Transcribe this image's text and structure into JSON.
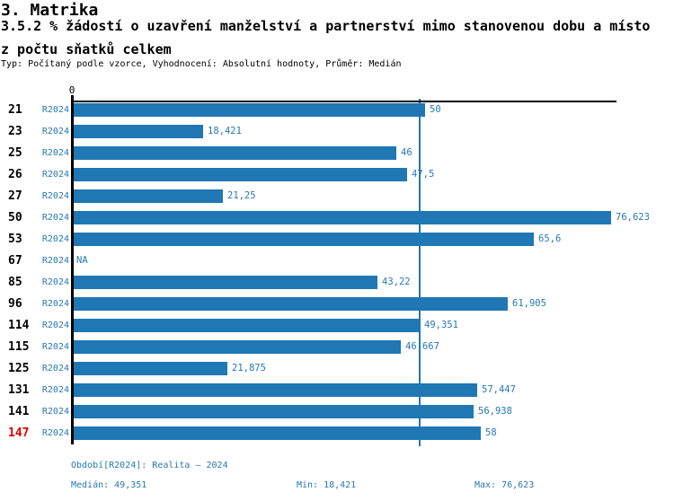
{
  "header": {
    "title": "3. Matrika",
    "subtitle_line1": "3.5.2 % žádostí o uzavření manželství a partnerství mimo stanovenou dobu a místo",
    "subtitle_line2": "z počtu sňatků celkem",
    "meta": "Typ: Počítaný podle vzorce, Vyhodnocení: Absolutní hodnoty, Průměr: Medián"
  },
  "chart_data": {
    "type": "bar",
    "orientation": "horizontal",
    "title": "3. Matrika",
    "subtitle": "3.5.2 % žádostí o uzavření manželství a partnerství mimo stanovenou dobu a místo z počtu sňatků celkem",
    "x_axis_zero_label": "0",
    "xlim": [
      0,
      77.3
    ],
    "grid": false,
    "series_label": "R2024",
    "median_value": 49.351,
    "categories": [
      "21",
      "23",
      "25",
      "26",
      "27",
      "50",
      "53",
      "67",
      "85",
      "96",
      "114",
      "115",
      "125",
      "131",
      "141",
      "147"
    ],
    "rows": [
      {
        "id": "21",
        "series": "R2024",
        "value": 50,
        "label": "50",
        "highlight": false
      },
      {
        "id": "23",
        "series": "R2024",
        "value": 18.421,
        "label": "18,421",
        "highlight": false
      },
      {
        "id": "25",
        "series": "R2024",
        "value": 46,
        "label": "46",
        "highlight": false
      },
      {
        "id": "26",
        "series": "R2024",
        "value": 47.5,
        "label": "47,5",
        "highlight": false
      },
      {
        "id": "27",
        "series": "R2024",
        "value": 21.25,
        "label": "21,25",
        "highlight": false
      },
      {
        "id": "50",
        "series": "R2024",
        "value": 76.623,
        "label": "76,623",
        "highlight": false
      },
      {
        "id": "53",
        "series": "R2024",
        "value": 65.6,
        "label": "65,6",
        "highlight": false
      },
      {
        "id": "67",
        "series": "R2024",
        "value": null,
        "label": "NA",
        "highlight": false
      },
      {
        "id": "85",
        "series": "R2024",
        "value": 43.22,
        "label": "43,22",
        "highlight": false
      },
      {
        "id": "96",
        "series": "R2024",
        "value": 61.905,
        "label": "61,905",
        "highlight": false
      },
      {
        "id": "114",
        "series": "R2024",
        "value": 49.351,
        "label": "49,351",
        "highlight": false
      },
      {
        "id": "115",
        "series": "R2024",
        "value": 46.667,
        "label": "46,667",
        "highlight": false
      },
      {
        "id": "125",
        "series": "R2024",
        "value": 21.875,
        "label": "21,875",
        "highlight": false
      },
      {
        "id": "131",
        "series": "R2024",
        "value": 57.447,
        "label": "57,447",
        "highlight": false
      },
      {
        "id": "141",
        "series": "R2024",
        "value": 56.938,
        "label": "56,938",
        "highlight": false
      },
      {
        "id": "147",
        "series": "R2024",
        "value": 58,
        "label": "58",
        "highlight": true
      }
    ],
    "colors": {
      "bar": "#1f77b4",
      "median_line": "#1f77b4",
      "label_text": "#2878b5",
      "highlight_category": "#e00000",
      "axis": "#000000"
    }
  },
  "footer": {
    "period": "Období[R2024]: Realita – 2024",
    "median": "Medián: 49,351",
    "min": "Min: 18,421",
    "max": "Max: 76,623"
  }
}
